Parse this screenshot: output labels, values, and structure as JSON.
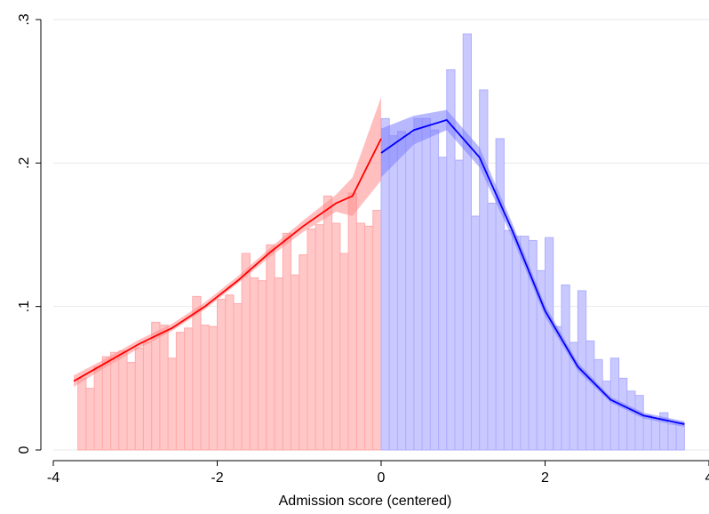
{
  "chart_data": {
    "type": "bar",
    "title": "",
    "xlabel": "Admission score (centered)",
    "ylabel": "",
    "xlim": [
      -4,
      4
    ],
    "ylim": [
      0,
      0.3
    ],
    "xticks": [
      -4,
      -2,
      0,
      2,
      4
    ],
    "xtick_labels": [
      "-4",
      "-2",
      "0",
      "2",
      "4"
    ],
    "yticks": [
      0,
      0.1,
      0.2,
      0.3
    ],
    "ytick_labels": [
      "0",
      ".1",
      ".2",
      ".3"
    ],
    "grid": "horizontal",
    "bin_width": 0.1,
    "colors": {
      "left_bar_fill": "#ffc7c7",
      "left_bar_stroke": "#ffaaaa",
      "left_line": "#ff0000",
      "left_band": "#ff8a8a",
      "right_bar_fill": "#c9c9ff",
      "right_bar_stroke": "#aeaeff",
      "right_line": "#0000ff",
      "right_band": "#7d7dff",
      "grid": "#eaeaea"
    },
    "histogram_left": {
      "bin_start": [
        -3.7,
        -3.6,
        -3.5,
        -3.4,
        -3.3,
        -3.2,
        -3.1,
        -3.0,
        -2.9,
        -2.8,
        -2.7,
        -2.6,
        -2.5,
        -2.4,
        -2.3,
        -2.2,
        -2.1,
        -2.0,
        -1.9,
        -1.8,
        -1.7,
        -1.6,
        -1.5,
        -1.4,
        -1.3,
        -1.2,
        -1.1,
        -1.0,
        -0.9,
        -0.8,
        -0.7,
        -0.6,
        -0.5,
        -0.4,
        -0.3,
        -0.2,
        -0.1
      ],
      "density": [
        0.05,
        0.043,
        0.058,
        0.065,
        0.068,
        0.069,
        0.061,
        0.071,
        0.075,
        0.089,
        0.087,
        0.064,
        0.082,
        0.085,
        0.107,
        0.087,
        0.086,
        0.105,
        0.108,
        0.102,
        0.137,
        0.12,
        0.118,
        0.143,
        0.12,
        0.151,
        0.122,
        0.136,
        0.154,
        0.157,
        0.177,
        0.158,
        0.137,
        0.179,
        0.158,
        0.156,
        0.167
      ]
    },
    "histogram_right": {
      "bin_start": [
        0.0,
        0.1,
        0.2,
        0.3,
        0.4,
        0.5,
        0.6,
        0.7,
        0.8,
        0.9,
        1.0,
        1.1,
        1.2,
        1.3,
        1.4,
        1.5,
        1.6,
        1.7,
        1.8,
        1.9,
        2.0,
        2.1,
        2.2,
        2.3,
        2.4,
        2.5,
        2.6,
        2.7,
        2.8,
        2.9,
        3.0,
        3.1,
        3.2,
        3.3,
        3.4,
        3.5,
        3.6
      ],
      "density": [
        0.231,
        0.219,
        0.222,
        0.22,
        0.231,
        0.231,
        0.223,
        0.204,
        0.265,
        0.202,
        0.29,
        0.163,
        0.251,
        0.172,
        0.217,
        0.153,
        0.149,
        0.149,
        0.146,
        0.125,
        0.148,
        0.086,
        0.115,
        0.075,
        0.111,
        0.076,
        0.063,
        0.048,
        0.064,
        0.05,
        0.041,
        0.038,
        0.024,
        0.022,
        0.026,
        0.018,
        0.019
      ]
    },
    "fit_left": {
      "x": [
        -3.75,
        -3.35,
        -2.95,
        -2.55,
        -2.15,
        -1.75,
        -1.35,
        -0.95,
        -0.55,
        -0.35,
        0.0
      ],
      "y": [
        0.048,
        0.061,
        0.074,
        0.085,
        0.1,
        0.118,
        0.138,
        0.156,
        0.172,
        0.177,
        0.217
      ],
      "ci_low": [
        0.044,
        0.058,
        0.071,
        0.083,
        0.098,
        0.116,
        0.135,
        0.152,
        0.166,
        0.163,
        0.188
      ],
      "ci_high": [
        0.052,
        0.064,
        0.077,
        0.088,
        0.103,
        0.121,
        0.141,
        0.16,
        0.178,
        0.19,
        0.246
      ]
    },
    "fit_right": {
      "x": [
        0.0,
        0.4,
        0.8,
        1.2,
        1.6,
        2.0,
        2.4,
        2.8,
        3.2,
        3.7
      ],
      "y": [
        0.207,
        0.223,
        0.23,
        0.204,
        0.153,
        0.097,
        0.058,
        0.035,
        0.024,
        0.018
      ],
      "ci_low": [
        0.19,
        0.213,
        0.223,
        0.197,
        0.148,
        0.093,
        0.055,
        0.033,
        0.022,
        0.016
      ],
      "ci_high": [
        0.224,
        0.233,
        0.237,
        0.211,
        0.158,
        0.101,
        0.061,
        0.037,
        0.026,
        0.02
      ]
    }
  }
}
